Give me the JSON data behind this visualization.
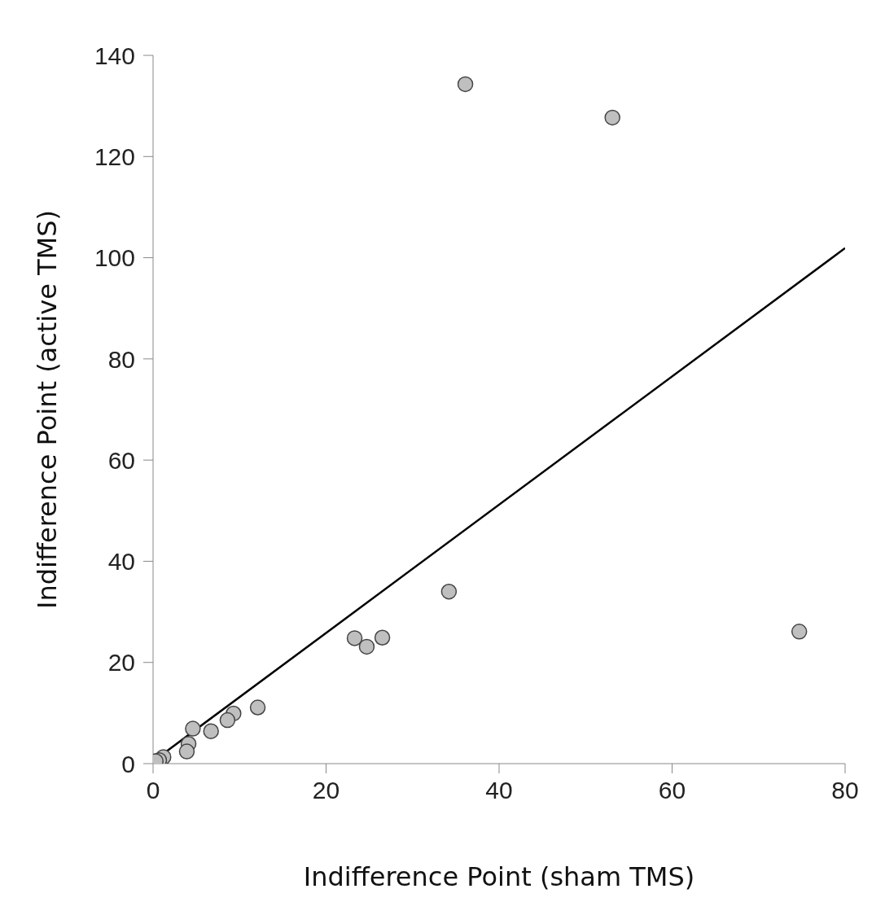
{
  "chart_data": {
    "type": "scatter",
    "xlabel": "Indifference Point (sham TMS)",
    "ylabel": "Indifference Point (active TMS)",
    "xlim": [
      0,
      80
    ],
    "ylim": [
      0,
      140
    ],
    "xticks": [
      0,
      20,
      40,
      60,
      80
    ],
    "yticks": [
      0,
      20,
      40,
      60,
      80,
      100,
      120,
      140
    ],
    "grid": false,
    "series": [
      {
        "marker": "circle",
        "color": "#bfbfbf",
        "x": [
          36.1,
          53.1,
          74.7,
          34.2,
          23.3,
          24.7,
          26.5,
          12.1,
          9.3,
          8.6,
          6.7,
          4.6,
          4.1,
          3.9,
          1.2,
          0.7,
          0.3
        ],
        "values": [
          134.3,
          127.7,
          26.1,
          34.0,
          24.8,
          23.1,
          24.9,
          11.1,
          9.9,
          8.6,
          6.4,
          6.9,
          3.9,
          2.4,
          1.3,
          0.7,
          0.5
        ]
      },
      {
        "type": "line",
        "color": "#000000",
        "x": [
          0.5,
          80
        ],
        "values": [
          1.1,
          101.9
        ]
      }
    ]
  }
}
